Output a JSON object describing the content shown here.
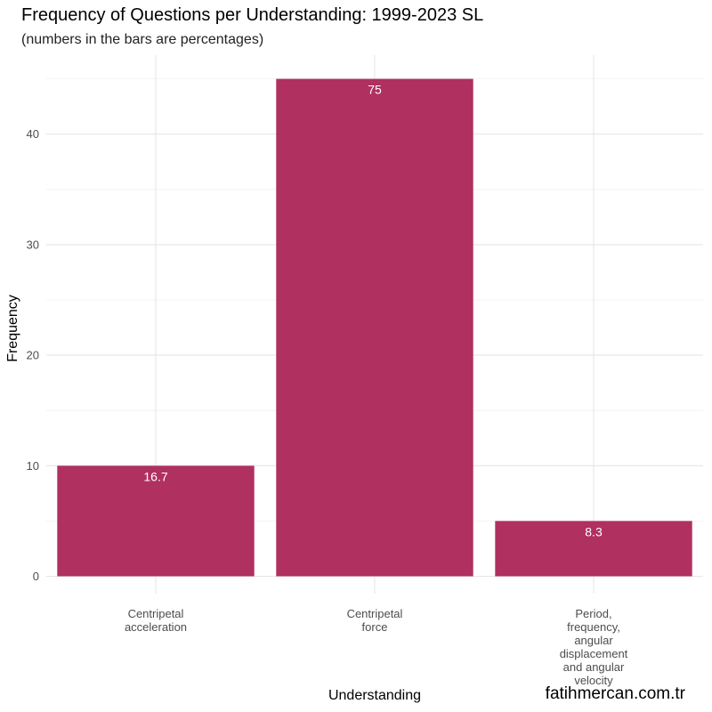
{
  "chart_data": {
    "type": "bar",
    "title": "Frequency of Questions per Understanding: 1999-2023 SL",
    "subtitle": "(numbers in the bars are percentages)",
    "xlabel": "Understanding",
    "ylabel": "Frequency",
    "categories": [
      [
        "Centripetal",
        "acceleration"
      ],
      [
        "Centripetal",
        "force"
      ],
      [
        "Period,",
        "frequency,",
        "angular",
        "displacement",
        "and angular",
        "velocity"
      ]
    ],
    "values": [
      10,
      45,
      5
    ],
    "bar_labels": [
      "16.7",
      "75",
      "8.3"
    ],
    "yticks": [
      0,
      10,
      20,
      30,
      40
    ],
    "ylim": [
      0,
      47.2
    ],
    "bar_color": "#b03060",
    "grid": true
  },
  "watermark": "fatihmercan.com.tr"
}
